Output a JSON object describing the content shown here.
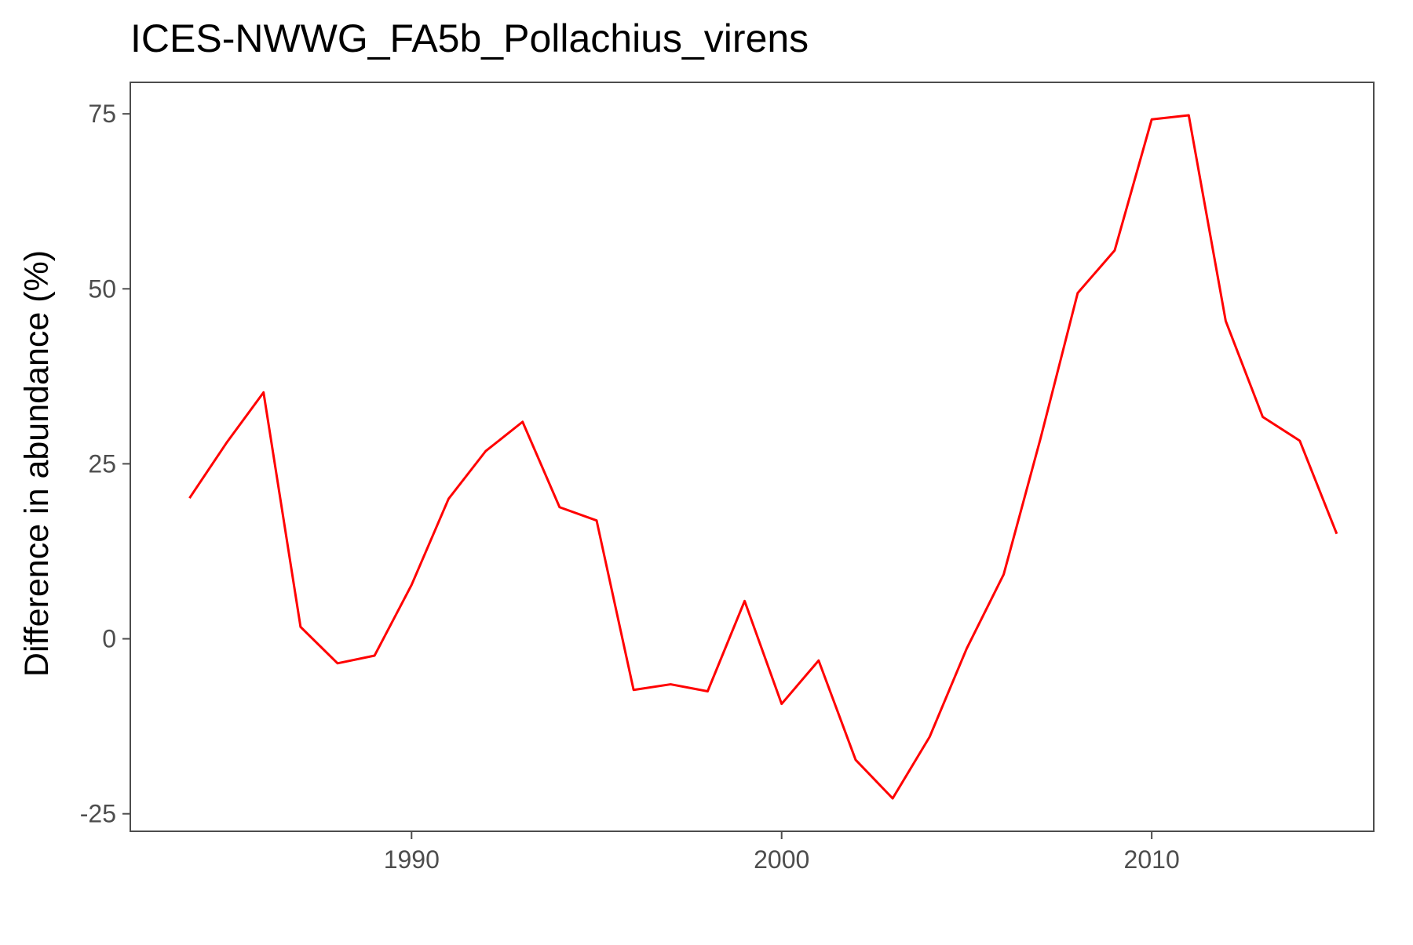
{
  "chart_data": {
    "type": "line",
    "title": "ICES-NWWG_FA5b_Pollachius_virens",
    "xlabel": "",
    "ylabel": "Difference in abundance (%)",
    "xlim": [
      1982.4,
      2016.0
    ],
    "ylim": [
      -27.5,
      79.5
    ],
    "x_ticks": [
      1990,
      2000,
      2010
    ],
    "y_ticks": [
      -25,
      0,
      25,
      50,
      75
    ],
    "x_tick_labels": [
      "1990",
      "2000",
      "2010"
    ],
    "y_tick_labels": [
      "-25",
      "0",
      "25",
      "50",
      "75"
    ],
    "grid": false,
    "colors": {
      "line": "#ff0000",
      "panel_border": "#4d4d4d",
      "tick_label": "#4d4d4d",
      "text": "#000000"
    },
    "series": [
      {
        "x": [
          1984,
          1985,
          1986,
          1987,
          1988,
          1989,
          1990,
          1991,
          1992,
          1993,
          1994,
          1995,
          1996,
          1997,
          1998,
          1999,
          2000,
          2001,
          2002,
          2003,
          2004,
          2005,
          2006,
          2007,
          2008,
          2009,
          2010,
          2011,
          2012,
          2013,
          2014,
          2015
        ],
        "values": [
          20.1,
          28.0,
          35.2,
          1.7,
          -3.5,
          -2.4,
          7.7,
          20.0,
          26.8,
          31.0,
          18.8,
          16.9,
          -7.3,
          -6.5,
          -7.5,
          5.4,
          -9.3,
          -3.1,
          -17.3,
          -22.8,
          -14.0,
          -1.4,
          9.2,
          28.7,
          49.4,
          55.5,
          74.2,
          74.8,
          45.4,
          31.7,
          28.3,
          15.0
        ]
      }
    ]
  }
}
